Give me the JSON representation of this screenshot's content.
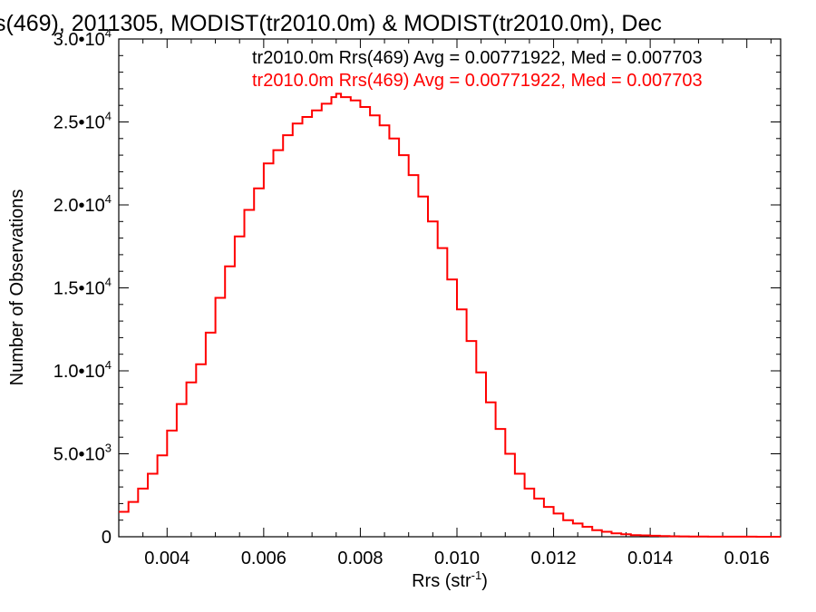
{
  "chart_data": {
    "type": "histogram",
    "title": "s(469), 2011305, MODIST(tr2010.0m) & MODIST(tr2010.0m), Dec",
    "xlabel": "Rrs (str",
    "xlabel_sup": "-1",
    "xlabel_close": ")",
    "ylabel": "Number of Observations",
    "xlim": [
      0.003,
      0.0167
    ],
    "ylim": [
      0,
      30000
    ],
    "x_ticks": [
      {
        "value": 0.004,
        "label": "0.004"
      },
      {
        "value": 0.006,
        "label": "0.006"
      },
      {
        "value": 0.008,
        "label": "0.008"
      },
      {
        "value": 0.01,
        "label": "0.010"
      },
      {
        "value": 0.012,
        "label": "0.012"
      },
      {
        "value": 0.014,
        "label": "0.014"
      },
      {
        "value": 0.016,
        "label": "0.016"
      }
    ],
    "y_ticks": [
      {
        "value": 0,
        "mant": "0",
        "exp": ""
      },
      {
        "value": 5000,
        "mant": "5.0•10",
        "exp": "3"
      },
      {
        "value": 10000,
        "mant": "1.0•10",
        "exp": "4"
      },
      {
        "value": 15000,
        "mant": "1.5•10",
        "exp": "4"
      },
      {
        "value": 20000,
        "mant": "2.0•10",
        "exp": "4"
      },
      {
        "value": 25000,
        "mant": "2.5•10",
        "exp": "4"
      },
      {
        "value": 30000,
        "mant": "3.0•10",
        "exp": "4"
      }
    ],
    "legend": [
      {
        "text": "tr2010.0m Rrs(469) Avg = 0.00771922, Med = 0.007703",
        "color": "#000000"
      },
      {
        "text": "tr2010.0m Rrs(469) Avg = 0.00771922, Med = 0.007703",
        "color": "#ff0000"
      }
    ],
    "series": [
      {
        "color": "#ff0000",
        "x": [
          0.003,
          0.0032,
          0.0034,
          0.0036,
          0.0038,
          0.004,
          0.0042,
          0.0044,
          0.0046,
          0.0048,
          0.005,
          0.0052,
          0.0054,
          0.0056,
          0.0058,
          0.006,
          0.0062,
          0.0064,
          0.0066,
          0.0068,
          0.007,
          0.0072,
          0.0074,
          0.0075,
          0.0076,
          0.0078,
          0.008,
          0.0082,
          0.0084,
          0.0086,
          0.0088,
          0.009,
          0.0092,
          0.0094,
          0.0096,
          0.0098,
          0.01,
          0.0102,
          0.0104,
          0.0106,
          0.0108,
          0.011,
          0.0112,
          0.0114,
          0.0116,
          0.0118,
          0.012,
          0.0122,
          0.0124,
          0.0126,
          0.0128,
          0.013,
          0.0132,
          0.0134,
          0.0136,
          0.0138,
          0.014,
          0.0142,
          0.0144,
          0.0146,
          0.0148,
          0.015,
          0.0152,
          0.0154,
          0.0156,
          0.0158,
          0.016,
          0.0162,
          0.0164,
          0.0167
        ],
        "y": [
          1500,
          2100,
          2900,
          3800,
          4900,
          6400,
          8000,
          9300,
          10400,
          12300,
          14400,
          16300,
          18100,
          19700,
          21000,
          22500,
          23300,
          24200,
          24900,
          25300,
          25700,
          26100,
          26500,
          26700,
          26500,
          26300,
          25900,
          25400,
          24800,
          24000,
          23000,
          21800,
          20500,
          19000,
          17400,
          15500,
          13700,
          11800,
          9900,
          8100,
          6500,
          5000,
          3800,
          2900,
          2300,
          1800,
          1400,
          1000,
          800,
          600,
          400,
          300,
          200,
          150,
          100,
          80,
          60,
          40,
          30,
          20,
          15,
          10,
          8,
          6,
          5,
          4,
          3,
          2,
          2,
          1
        ]
      }
    ]
  }
}
